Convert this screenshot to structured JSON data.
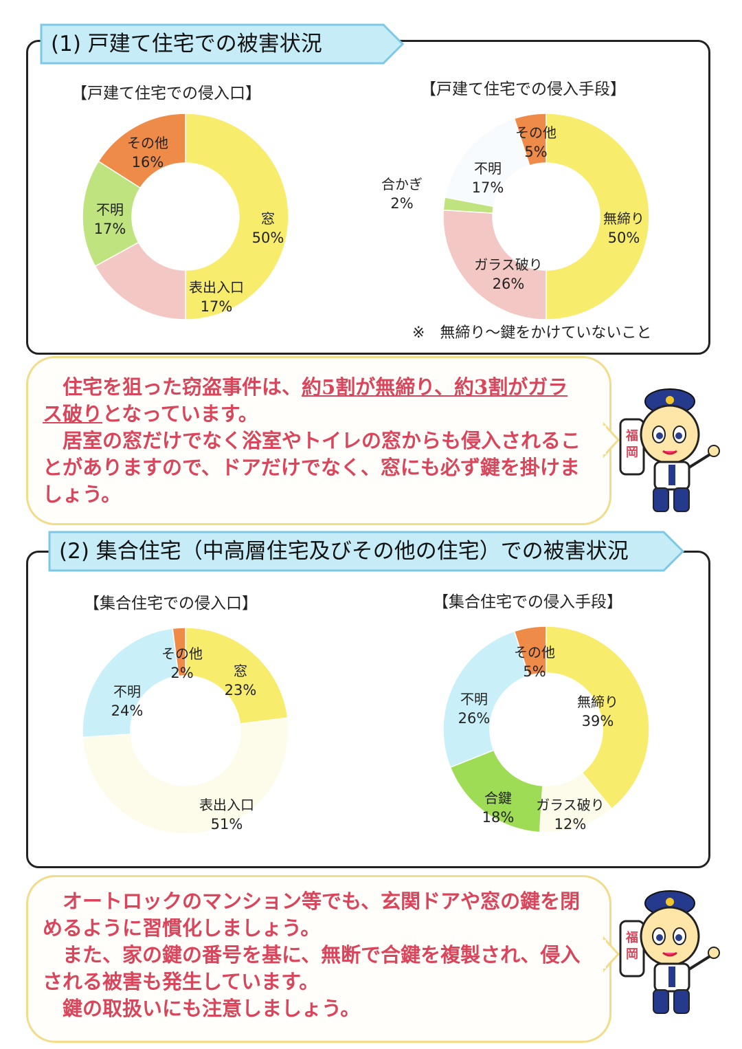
{
  "sections": [
    {
      "heading": "(1) 戸建て住宅での被害状況",
      "charts": [
        {
          "title": "【戸建て住宅での侵入口】",
          "slices": [
            {
              "name": "窓",
              "value": 50,
              "label": "50%",
              "color": "#f8ec6c"
            },
            {
              "name": "表出入口",
              "value": 17,
              "label": "17%",
              "color": "#f2c7c4"
            },
            {
              "name": "不明",
              "value": 17,
              "label": "17%",
              "color": "#bfe37e"
            },
            {
              "name": "その他",
              "value": 16,
              "label": "16%",
              "color": "#ef8b48"
            }
          ]
        },
        {
          "title": "【戸建て住宅での侵入手段】",
          "slices": [
            {
              "name": "無締り",
              "value": 50,
              "label": "50%",
              "color": "#f8ec6c"
            },
            {
              "name": "ガラス破り",
              "value": 26,
              "label": "26%",
              "color": "#f2c7c4"
            },
            {
              "name": "合かぎ",
              "value": 2,
              "label": "2%",
              "color": "#bfe37e"
            },
            {
              "name": "不明",
              "value": 17,
              "label": "17%",
              "color": "#f7fbfd"
            },
            {
              "name": "その他",
              "value": 5,
              "label": "5%",
              "color": "#ef8b48"
            }
          ]
        }
      ],
      "note": "※　無締り～鍵をかけていないこと",
      "message": {
        "line1_a": "住宅を狙った窃盗事件は、",
        "line1_b": "約5割が無締り、約3割がガラス破り",
        "line1_c": "となっています。",
        "line2": "居室の窓だけでなく浴室やトイレの窓からも侵入されることがありますので、ドアだけでなく、窓にも必ず鍵を掛けましょう。"
      }
    },
    {
      "heading": "(2) 集合住宅（中高層住宅及びその他の住宅）での被害状況",
      "charts": [
        {
          "title": "【集合住宅での侵入口】",
          "slices": [
            {
              "name": "窓",
              "value": 23,
              "label": "23%",
              "color": "#f8ec6c"
            },
            {
              "name": "表出入口",
              "value": 51,
              "label": "51%",
              "color": "#fdfbe9"
            },
            {
              "name": "不明",
              "value": 24,
              "label": "24%",
              "color": "#c9f0f8"
            },
            {
              "name": "その他",
              "value": 2,
              "label": "2%",
              "color": "#ef8b48"
            }
          ]
        },
        {
          "title": "【集合住宅での侵入手段】",
          "slices": [
            {
              "name": "無締り",
              "value": 39,
              "label": "39%",
              "color": "#f8ec6c"
            },
            {
              "name": "ガラス破り",
              "value": 12,
              "label": "12%",
              "color": "#fdfbe9"
            },
            {
              "name": "合鍵",
              "value": 18,
              "label": "18%",
              "color": "#9fdc56"
            },
            {
              "name": "不明",
              "value": 26,
              "label": "26%",
              "color": "#c9f0f8"
            },
            {
              "name": "その他",
              "value": 5,
              "label": "5%",
              "color": "#ef8b48"
            }
          ]
        }
      ],
      "message": {
        "line1": "オートロックのマンション等でも、玄関ドアや窓の鍵を閉めるように習慣化しましょう。",
        "line2": "また、家の鍵の番号を基に、無断で合鍵を複製され、侵入される被害も発生しています。",
        "line3": "鍵の取扱いにも注意しましょう。"
      }
    }
  ],
  "mascot_sign": "福岡",
  "chart_data": [
    {
      "type": "pie",
      "title": "【戸建て住宅での侵入口】",
      "categories": [
        "窓",
        "表出入口",
        "不明",
        "その他"
      ],
      "values": [
        50,
        17,
        17,
        16
      ]
    },
    {
      "type": "pie",
      "title": "【戸建て住宅での侵入手段】",
      "categories": [
        "無締り",
        "ガラス破り",
        "合かぎ",
        "不明",
        "その他"
      ],
      "values": [
        50,
        26,
        2,
        17,
        5
      ]
    },
    {
      "type": "pie",
      "title": "【集合住宅での侵入口】",
      "categories": [
        "窓",
        "表出入口",
        "不明",
        "その他"
      ],
      "values": [
        23,
        51,
        24,
        2
      ]
    },
    {
      "type": "pie",
      "title": "【集合住宅での侵入手段】",
      "categories": [
        "無締り",
        "ガラス破り",
        "合鍵",
        "不明",
        "その他"
      ],
      "values": [
        39,
        12,
        18,
        26,
        5
      ]
    }
  ]
}
